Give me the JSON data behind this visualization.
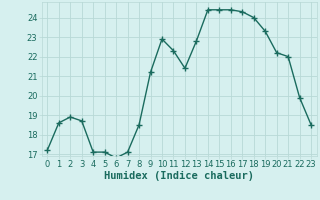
{
  "x": [
    0,
    1,
    2,
    3,
    4,
    5,
    6,
    7,
    8,
    9,
    10,
    11,
    12,
    13,
    14,
    15,
    16,
    17,
    18,
    19,
    20,
    21,
    22,
    23
  ],
  "y": [
    17.2,
    18.6,
    18.9,
    18.7,
    17.1,
    17.1,
    16.8,
    17.1,
    18.5,
    21.2,
    22.9,
    22.3,
    21.4,
    22.8,
    24.4,
    24.4,
    24.4,
    24.3,
    24.0,
    23.3,
    22.2,
    22.0,
    19.9,
    18.5
  ],
  "line_color": "#1a6b5e",
  "marker": "+",
  "marker_size": 4.0,
  "bg_color": "#d6f0ef",
  "grid_color": "#b8d9d6",
  "xlabel": "Humidex (Indice chaleur)",
  "xlabel_color": "#1a6b5e",
  "ylim": [
    16.9,
    24.8
  ],
  "yticks": [
    17,
    18,
    19,
    20,
    21,
    22,
    23,
    24
  ],
  "xticks": [
    0,
    1,
    2,
    3,
    4,
    5,
    6,
    7,
    8,
    9,
    10,
    11,
    12,
    13,
    14,
    15,
    16,
    17,
    18,
    19,
    20,
    21,
    22,
    23
  ],
  "tick_label_color": "#1a6b5e",
  "tick_label_size": 6.0,
  "xlabel_size": 7.5,
  "linewidth": 1.0,
  "marker_color": "#1a6b5e"
}
